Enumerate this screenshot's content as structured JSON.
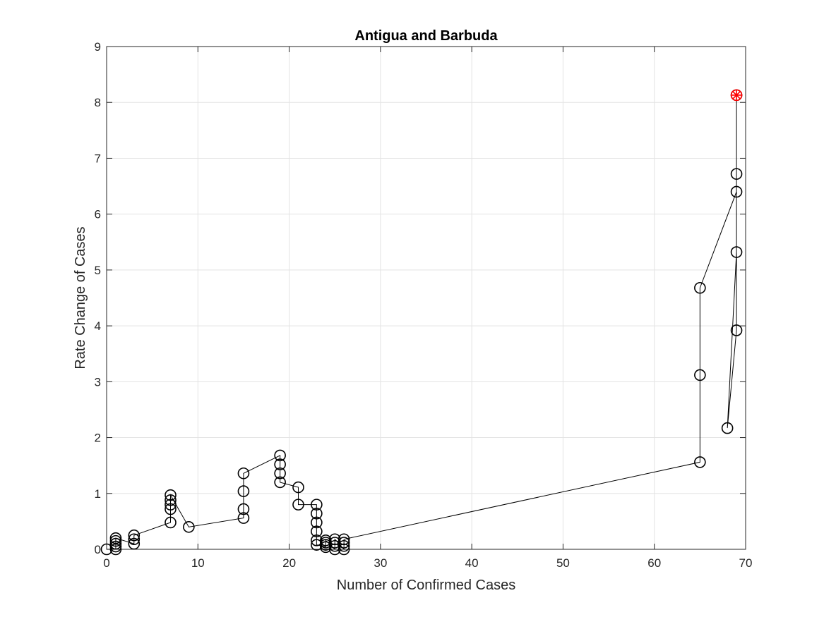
{
  "chart_data": {
    "type": "line",
    "title": "Antigua and Barbuda",
    "xlabel": "Number of Confirmed Cases",
    "ylabel": "Rate Change of Cases",
    "xlim": [
      0,
      70
    ],
    "ylim": [
      0,
      9
    ],
    "xticks": [
      0,
      10,
      20,
      30,
      40,
      50,
      60,
      70
    ],
    "yticks": [
      0,
      1,
      2,
      3,
      4,
      5,
      6,
      7,
      8,
      9
    ],
    "grid": true,
    "legend": "none",
    "series": [
      {
        "marker": "circle",
        "color": "#000000",
        "x": [
          0,
          1,
          1,
          1,
          1,
          1,
          3,
          3,
          3,
          7,
          7,
          7,
          7,
          7,
          9,
          15,
          15,
          15,
          15,
          19,
          19,
          19,
          19,
          21,
          21,
          23,
          23,
          23,
          23,
          23,
          23,
          24,
          24,
          24,
          24,
          25,
          25,
          25,
          25,
          26,
          26,
          26,
          26,
          65,
          65,
          65,
          69,
          69,
          69,
          68,
          69,
          69
        ],
        "y": [
          0.0,
          0.0,
          0.05,
          0.1,
          0.15,
          0.2,
          0.1,
          0.18,
          0.25,
          0.48,
          0.72,
          0.8,
          0.88,
          0.97,
          0.4,
          0.56,
          0.72,
          1.04,
          1.36,
          1.68,
          1.52,
          1.36,
          1.2,
          1.11,
          0.8,
          0.8,
          0.64,
          0.48,
          0.32,
          0.16,
          0.08,
          0.04,
          0.08,
          0.12,
          0.16,
          0.0,
          0.06,
          0.12,
          0.18,
          0.0,
          0.06,
          0.12,
          0.18,
          1.56,
          3.12,
          4.68,
          6.4,
          6.72,
          5.32,
          2.17,
          3.92,
          8.13
        ]
      }
    ],
    "highlight": {
      "x": 69,
      "y": 8.13,
      "marker": "asterisk-circle",
      "color": "#ff0000"
    }
  }
}
